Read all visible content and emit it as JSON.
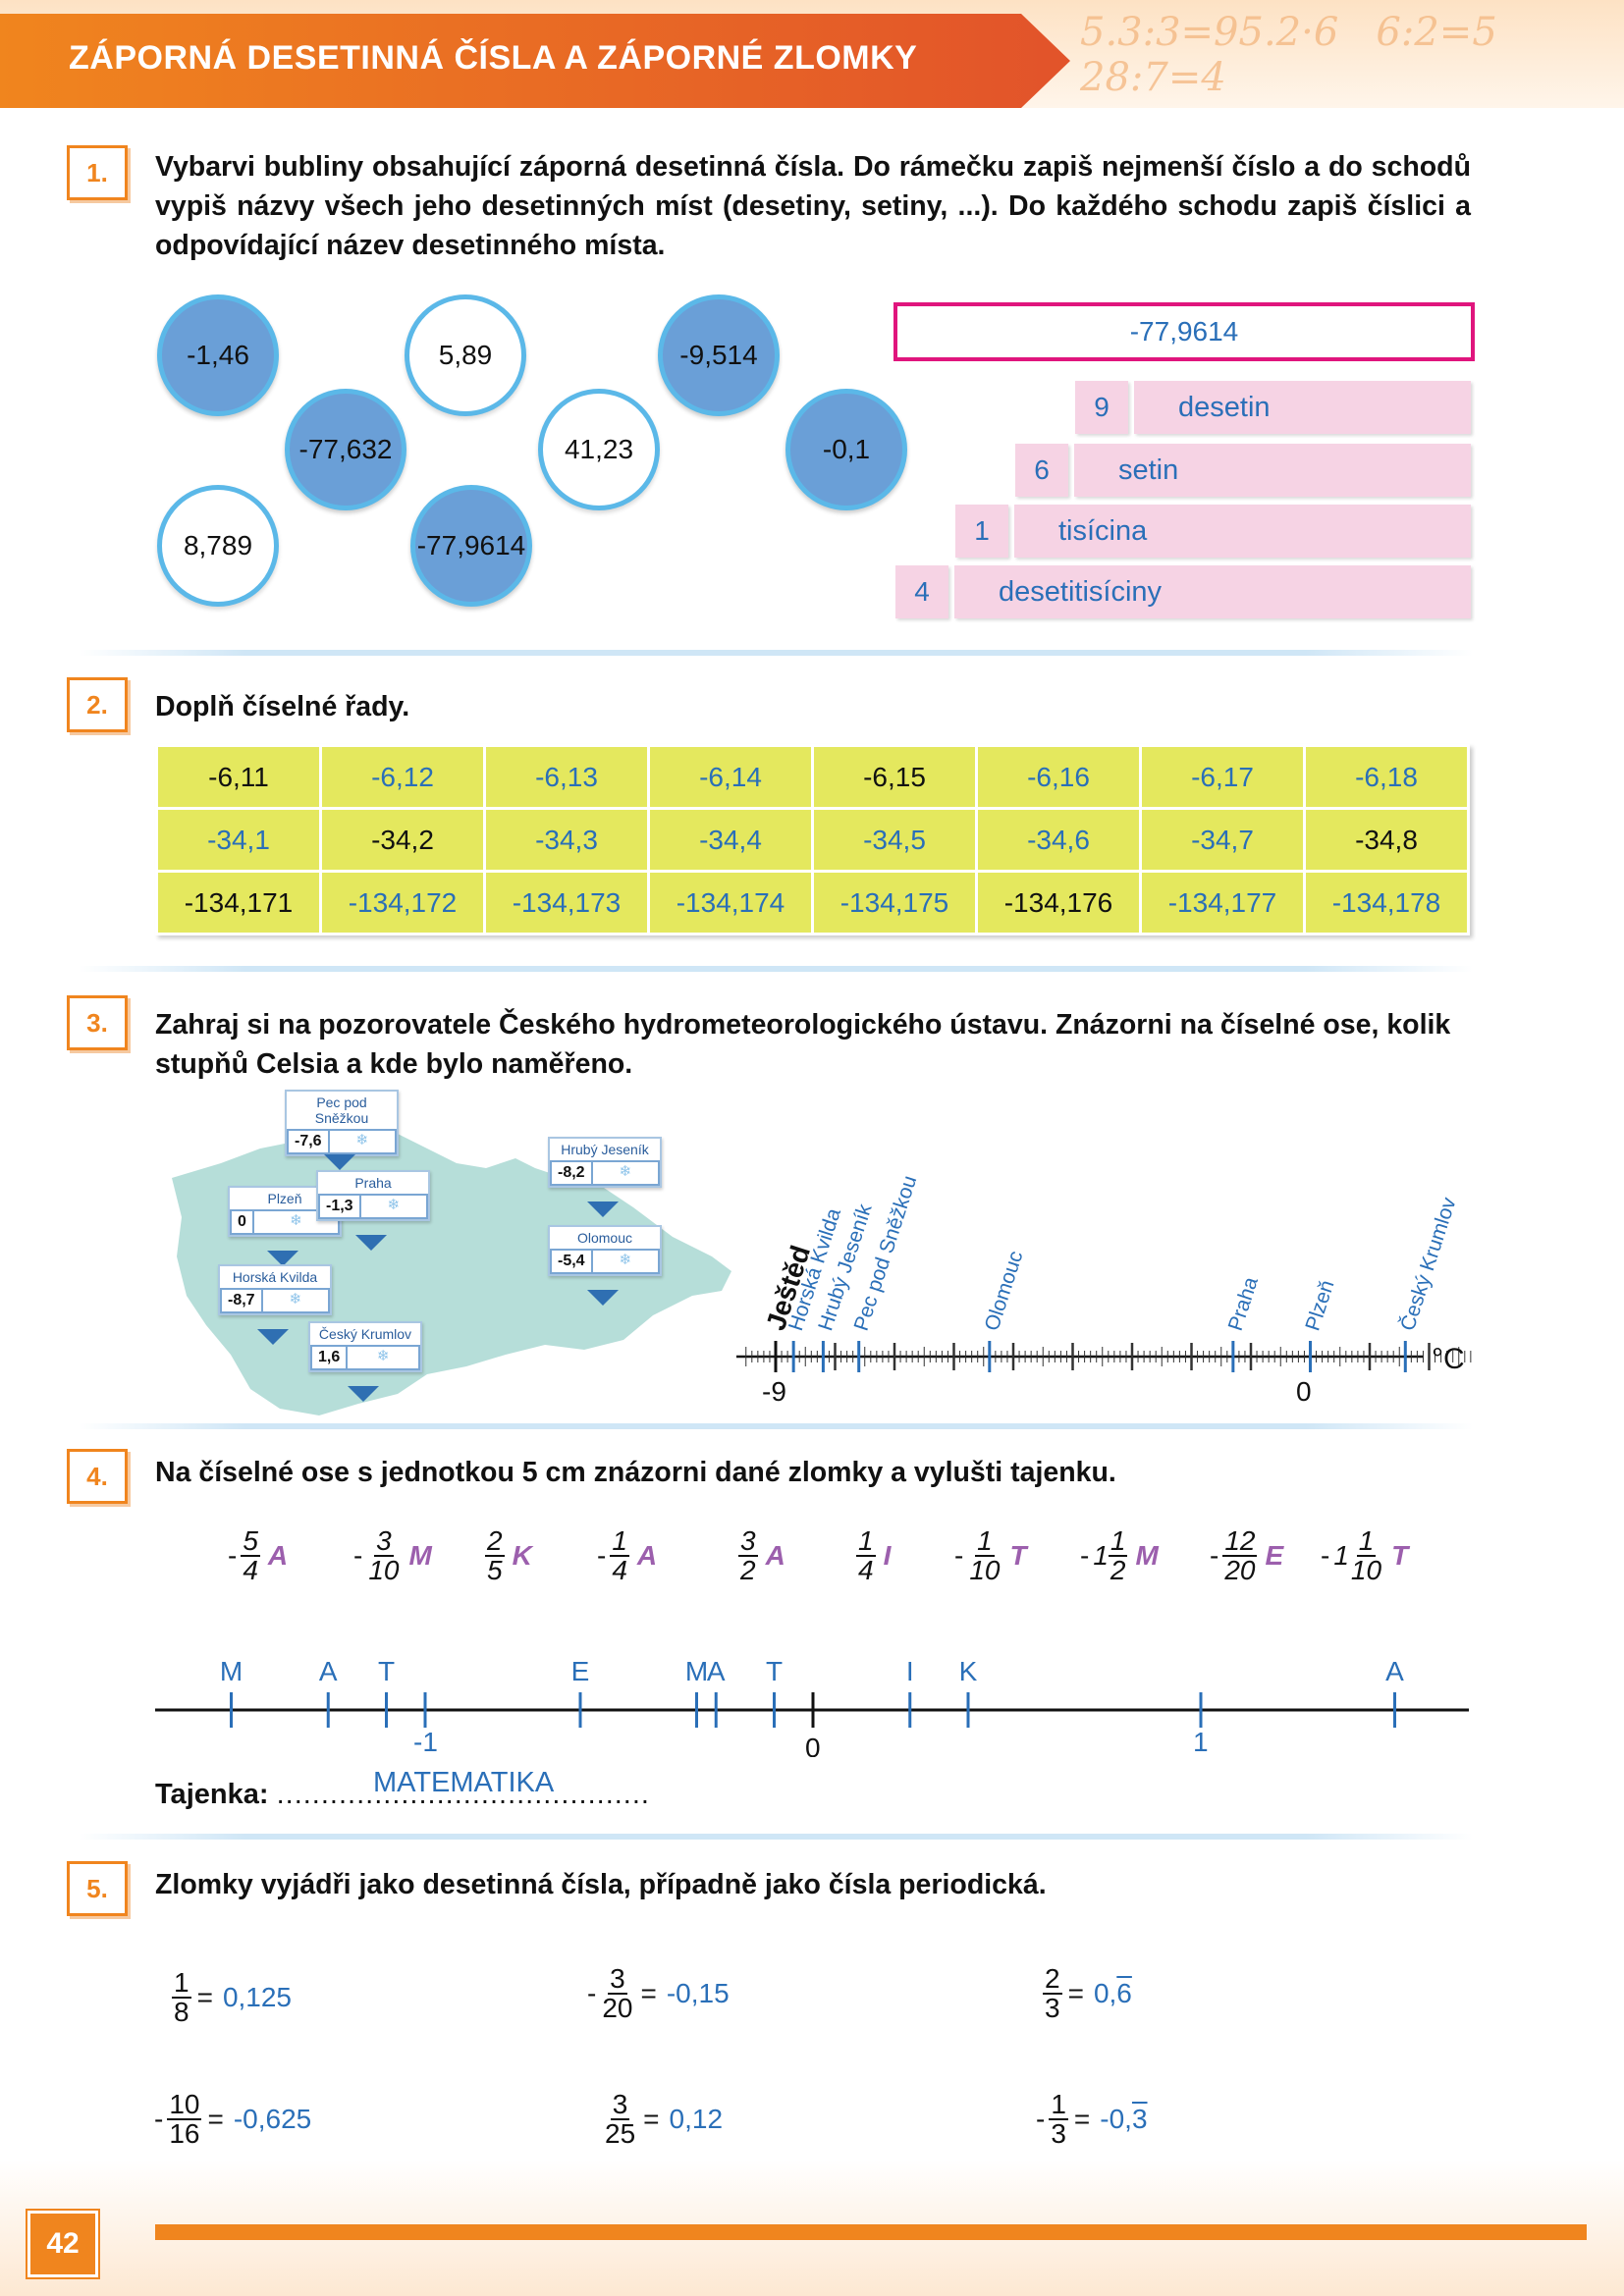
{
  "header": {
    "title": "ZÁPORNÁ DESETINNÁ ČÍSLA A ZÁPORNÉ ZLOMKY"
  },
  "task1": {
    "number": "1.",
    "instruction": "Vybarvi bubliny obsahující záporná desetinná čísla. Do rámečku zapiš nejmenší číslo a do schodů vypiš názvy všech jeho desetinných míst (desetiny, setiny, ...). Do každého schodu zapiš číslici a odpovídající název desetinného místa.",
    "bubbles": [
      {
        "value": "-1,46",
        "filled": true
      },
      {
        "value": "5,89",
        "filled": false
      },
      {
        "value": "-9,514",
        "filled": true
      },
      {
        "value": "-77,632",
        "filled": true
      },
      {
        "value": "41,23",
        "filled": false
      },
      {
        "value": "-0,1",
        "filled": true
      },
      {
        "value": "8,789",
        "filled": false
      },
      {
        "value": "-77,9614",
        "filled": true
      }
    ],
    "answer": "-77,9614",
    "stairs": [
      {
        "digit": "9",
        "name": "desetin"
      },
      {
        "digit": "6",
        "name": "setin"
      },
      {
        "digit": "1",
        "name": "tisícina"
      },
      {
        "digit": "4",
        "name": "desetitisíciny"
      }
    ]
  },
  "task2": {
    "number": "2.",
    "instruction": "Doplň číselné řady.",
    "rows": [
      {
        "cells": [
          "-6,11",
          "-6,12",
          "-6,13",
          "-6,14",
          "-6,15",
          "-6,16",
          "-6,17",
          "-6,18"
        ],
        "given": [
          0,
          4
        ]
      },
      {
        "cells": [
          "-34,1",
          "-34,2",
          "-34,3",
          "-34,4",
          "-34,5",
          "-34,6",
          "-34,7",
          "-34,8"
        ],
        "given": [
          1,
          7
        ]
      },
      {
        "cells": [
          "-134,171",
          "-134,172",
          "-134,173",
          "-134,174",
          "-134,175",
          "-134,176",
          "-134,177",
          "-134,178"
        ],
        "given": [
          0,
          5
        ]
      }
    ]
  },
  "task3": {
    "number": "3.",
    "instruction": "Zahraj si na pozorovatele Českého hydrometeorologického ústavu. Znázorni na číselné ose, kolik stupňů Celsia a kde bylo naměřeno.",
    "stations": [
      {
        "name": "Pec pod Sněžkou",
        "temp": "-7,6"
      },
      {
        "name": "Hrubý Jeseník",
        "temp": "-8,2"
      },
      {
        "name": "Plzeň",
        "temp": "0"
      },
      {
        "name": "Praha",
        "temp": "-1,3"
      },
      {
        "name": "Olomouc",
        "temp": "-5,4"
      },
      {
        "name": "Horská Kvilda",
        "temp": "-8,7"
      },
      {
        "name": "Český Krumlov",
        "temp": "1,6"
      }
    ],
    "axis": {
      "unit": "°C",
      "label_left": "-9",
      "label_zero": "0",
      "given_label": "Ještěd"
    },
    "axis_points": [
      {
        "label": "Ještěd",
        "value": -9
      },
      {
        "label": "Horská Kvilda",
        "value": -8.7
      },
      {
        "label": "Hrubý Jeseník",
        "value": -8.2
      },
      {
        "label": "Pec pod Sněžkou",
        "value": -7.6
      },
      {
        "label": "Olomouc",
        "value": -5.4
      },
      {
        "label": "Praha",
        "value": -1.3
      },
      {
        "label": "Plzeň",
        "value": 0
      },
      {
        "label": "Český Krumlov",
        "value": 1.6
      }
    ]
  },
  "task4": {
    "number": "4.",
    "instruction": "Na číselné ose s jednotkou 5 cm znázorni dané zlomky a vylušti tajenku.",
    "fractions": [
      {
        "sign": "-",
        "whole": "",
        "num": "5",
        "den": "4",
        "letter": "A"
      },
      {
        "sign": "-",
        "whole": "",
        "num": "3",
        "den": "10",
        "letter": "M"
      },
      {
        "sign": "",
        "whole": "",
        "num": "2",
        "den": "5",
        "letter": "K"
      },
      {
        "sign": "-",
        "whole": "",
        "num": "1",
        "den": "4",
        "letter": "A"
      },
      {
        "sign": "",
        "whole": "",
        "num": "3",
        "den": "2",
        "letter": "A"
      },
      {
        "sign": "",
        "whole": "",
        "num": "1",
        "den": "4",
        "letter": "I"
      },
      {
        "sign": "-",
        "whole": "",
        "num": "1",
        "den": "10",
        "letter": "T"
      },
      {
        "sign": "-",
        "whole": "1",
        "num": "1",
        "den": "2",
        "letter": "M"
      },
      {
        "sign": "-",
        "whole": "",
        "num": "12",
        "den": "20",
        "letter": "E"
      },
      {
        "sign": "-",
        "whole": "1",
        "num": "1",
        "den": "10",
        "letter": "T"
      }
    ],
    "axis_marks": [
      {
        "letter": "M",
        "value": -1.5
      },
      {
        "letter": "A",
        "value": -1.25
      },
      {
        "letter": "T",
        "value": -1.1
      },
      {
        "letter": "E",
        "value": -0.6
      },
      {
        "letter": "M",
        "value": -0.3
      },
      {
        "letter": "A",
        "value": -0.25
      },
      {
        "letter": "T",
        "value": -0.1
      },
      {
        "letter": "I",
        "value": 0.25
      },
      {
        "letter": "K",
        "value": 0.4
      },
      {
        "letter": "A",
        "value": 1.5
      }
    ],
    "axis_labels": {
      "minus_one": "-1",
      "zero": "0",
      "one": "1"
    },
    "secret_label": "Tajenka",
    "secret_answer": "MATEMATIKA"
  },
  "task5": {
    "number": "5.",
    "instruction": "Zlomky vyjádři jako desetinná čísla, případně jako čísla periodická.",
    "items": [
      {
        "sign": "",
        "num": "1",
        "den": "8",
        "answer": "0,125",
        "period": ""
      },
      {
        "sign": "-",
        "num": "3",
        "den": "20",
        "answer": "-0,15",
        "period": ""
      },
      {
        "sign": "",
        "num": "2",
        "den": "3",
        "answer": "0,",
        "period": "6"
      },
      {
        "sign": "-",
        "num": "10",
        "den": "16",
        "answer": "-0,625",
        "period": ""
      },
      {
        "sign": "",
        "num": "3",
        "den": "25",
        "answer": "0,12",
        "period": ""
      },
      {
        "sign": "-",
        "num": "1",
        "den": "3",
        "answer": "-0,",
        "period": "3"
      }
    ]
  },
  "footer": {
    "page": "42"
  },
  "colors": {
    "orange": "#f0851e",
    "answer_blue": "#2a6fb8",
    "bubble_fill": "#6a9fd7",
    "stair_pink": "#f6d3e4",
    "table_yellow": "#e4e85e",
    "letter_purple": "#9c5fad"
  }
}
